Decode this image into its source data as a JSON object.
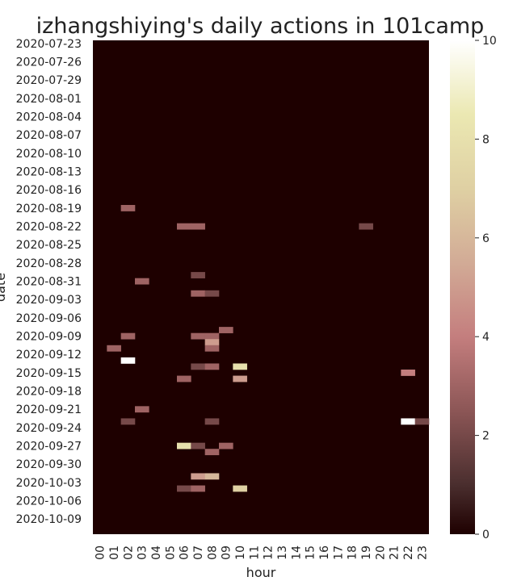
{
  "chart_data": {
    "type": "heatmap",
    "title": "izhangshiying's daily actions in 101camp",
    "xlabel": "hour",
    "ylabel": "date",
    "colormap": "pink",
    "colorbar": {
      "min": 0,
      "max": 10,
      "ticks": [
        0,
        2,
        4,
        6,
        8,
        10
      ]
    },
    "x_categories": [
      "00",
      "01",
      "02",
      "03",
      "04",
      "05",
      "06",
      "07",
      "08",
      "09",
      "10",
      "11",
      "12",
      "13",
      "14",
      "15",
      "16",
      "17",
      "18",
      "19",
      "20",
      "21",
      "22",
      "23"
    ],
    "y_categories": [
      "2020-07-23",
      "2020-07-24",
      "2020-07-25",
      "2020-07-26",
      "2020-07-27",
      "2020-07-28",
      "2020-07-29",
      "2020-07-30",
      "2020-07-31",
      "2020-08-01",
      "2020-08-02",
      "2020-08-03",
      "2020-08-04",
      "2020-08-05",
      "2020-08-06",
      "2020-08-07",
      "2020-08-08",
      "2020-08-09",
      "2020-08-10",
      "2020-08-11",
      "2020-08-12",
      "2020-08-13",
      "2020-08-14",
      "2020-08-15",
      "2020-08-16",
      "2020-08-17",
      "2020-08-18",
      "2020-08-19",
      "2020-08-20",
      "2020-08-21",
      "2020-08-22",
      "2020-08-23",
      "2020-08-24",
      "2020-08-25",
      "2020-08-26",
      "2020-08-27",
      "2020-08-28",
      "2020-08-29",
      "2020-08-30",
      "2020-08-31",
      "2020-09-01",
      "2020-09-02",
      "2020-09-03",
      "2020-09-04",
      "2020-09-05",
      "2020-09-06",
      "2020-09-07",
      "2020-09-08",
      "2020-09-09",
      "2020-09-10",
      "2020-09-11",
      "2020-09-12",
      "2020-09-13",
      "2020-09-14",
      "2020-09-15",
      "2020-09-16",
      "2020-09-17",
      "2020-09-18",
      "2020-09-19",
      "2020-09-20",
      "2020-09-21",
      "2020-09-22",
      "2020-09-23",
      "2020-09-24",
      "2020-09-25",
      "2020-09-26",
      "2020-09-27",
      "2020-09-28",
      "2020-09-29",
      "2020-09-30",
      "2020-10-01",
      "2020-10-02",
      "2020-10-03",
      "2020-10-04",
      "2020-10-05",
      "2020-10-06",
      "2020-10-07",
      "2020-10-08",
      "2020-10-09",
      "2020-10-10",
      "2020-10-11"
    ],
    "y_tick_labels": [
      "2020-07-23",
      "2020-07-26",
      "2020-07-29",
      "2020-08-01",
      "2020-08-04",
      "2020-08-07",
      "2020-08-10",
      "2020-08-13",
      "2020-08-16",
      "2020-08-19",
      "2020-08-22",
      "2020-08-25",
      "2020-08-28",
      "2020-08-31",
      "2020-09-03",
      "2020-09-06",
      "2020-09-09",
      "2020-09-12",
      "2020-09-15",
      "2020-09-18",
      "2020-09-21",
      "2020-09-24",
      "2020-09-27",
      "2020-09-30",
      "2020-10-03",
      "2020-10-06",
      "2020-10-09"
    ],
    "cells": [
      {
        "date": "2020-08-19",
        "hour": "02",
        "value": 3
      },
      {
        "date": "2020-08-22",
        "hour": "06",
        "value": 3
      },
      {
        "date": "2020-08-22",
        "hour": "07",
        "value": 3
      },
      {
        "date": "2020-08-22",
        "hour": "19",
        "value": 2
      },
      {
        "date": "2020-08-30",
        "hour": "07",
        "value": 2
      },
      {
        "date": "2020-08-31",
        "hour": "03",
        "value": 3
      },
      {
        "date": "2020-09-02",
        "hour": "07",
        "value": 3
      },
      {
        "date": "2020-09-02",
        "hour": "08",
        "value": 2
      },
      {
        "date": "2020-09-08",
        "hour": "09",
        "value": 3
      },
      {
        "date": "2020-09-09",
        "hour": "02",
        "value": 3
      },
      {
        "date": "2020-09-09",
        "hour": "07",
        "value": 3
      },
      {
        "date": "2020-09-09",
        "hour": "08",
        "value": 3
      },
      {
        "date": "2020-09-10",
        "hour": "08",
        "value": 5
      },
      {
        "date": "2020-09-11",
        "hour": "01",
        "value": 3
      },
      {
        "date": "2020-09-11",
        "hour": "08",
        "value": 3
      },
      {
        "date": "2020-09-13",
        "hour": "02",
        "value": 10
      },
      {
        "date": "2020-09-14",
        "hour": "07",
        "value": 2
      },
      {
        "date": "2020-09-14",
        "hour": "08",
        "value": 3
      },
      {
        "date": "2020-09-14",
        "hour": "10",
        "value": 8
      },
      {
        "date": "2020-09-15",
        "hour": "22",
        "value": 4
      },
      {
        "date": "2020-09-16",
        "hour": "06",
        "value": 3
      },
      {
        "date": "2020-09-16",
        "hour": "10",
        "value": 5
      },
      {
        "date": "2020-09-21",
        "hour": "03",
        "value": 3
      },
      {
        "date": "2020-09-23",
        "hour": "02",
        "value": 2
      },
      {
        "date": "2020-09-23",
        "hour": "08",
        "value": 2
      },
      {
        "date": "2020-09-23",
        "hour": "22",
        "value": 10
      },
      {
        "date": "2020-09-23",
        "hour": "23",
        "value": 2
      },
      {
        "date": "2020-09-27",
        "hour": "06",
        "value": 8
      },
      {
        "date": "2020-09-27",
        "hour": "07",
        "value": 2
      },
      {
        "date": "2020-09-27",
        "hour": "09",
        "value": 3
      },
      {
        "date": "2020-09-28",
        "hour": "08",
        "value": 3
      },
      {
        "date": "2020-10-02",
        "hour": "07",
        "value": 5
      },
      {
        "date": "2020-10-02",
        "hour": "08",
        "value": 6
      },
      {
        "date": "2020-10-04",
        "hour": "06",
        "value": 2
      },
      {
        "date": "2020-10-04",
        "hour": "07",
        "value": 3
      },
      {
        "date": "2020-10-04",
        "hour": "10",
        "value": 7
      }
    ]
  }
}
